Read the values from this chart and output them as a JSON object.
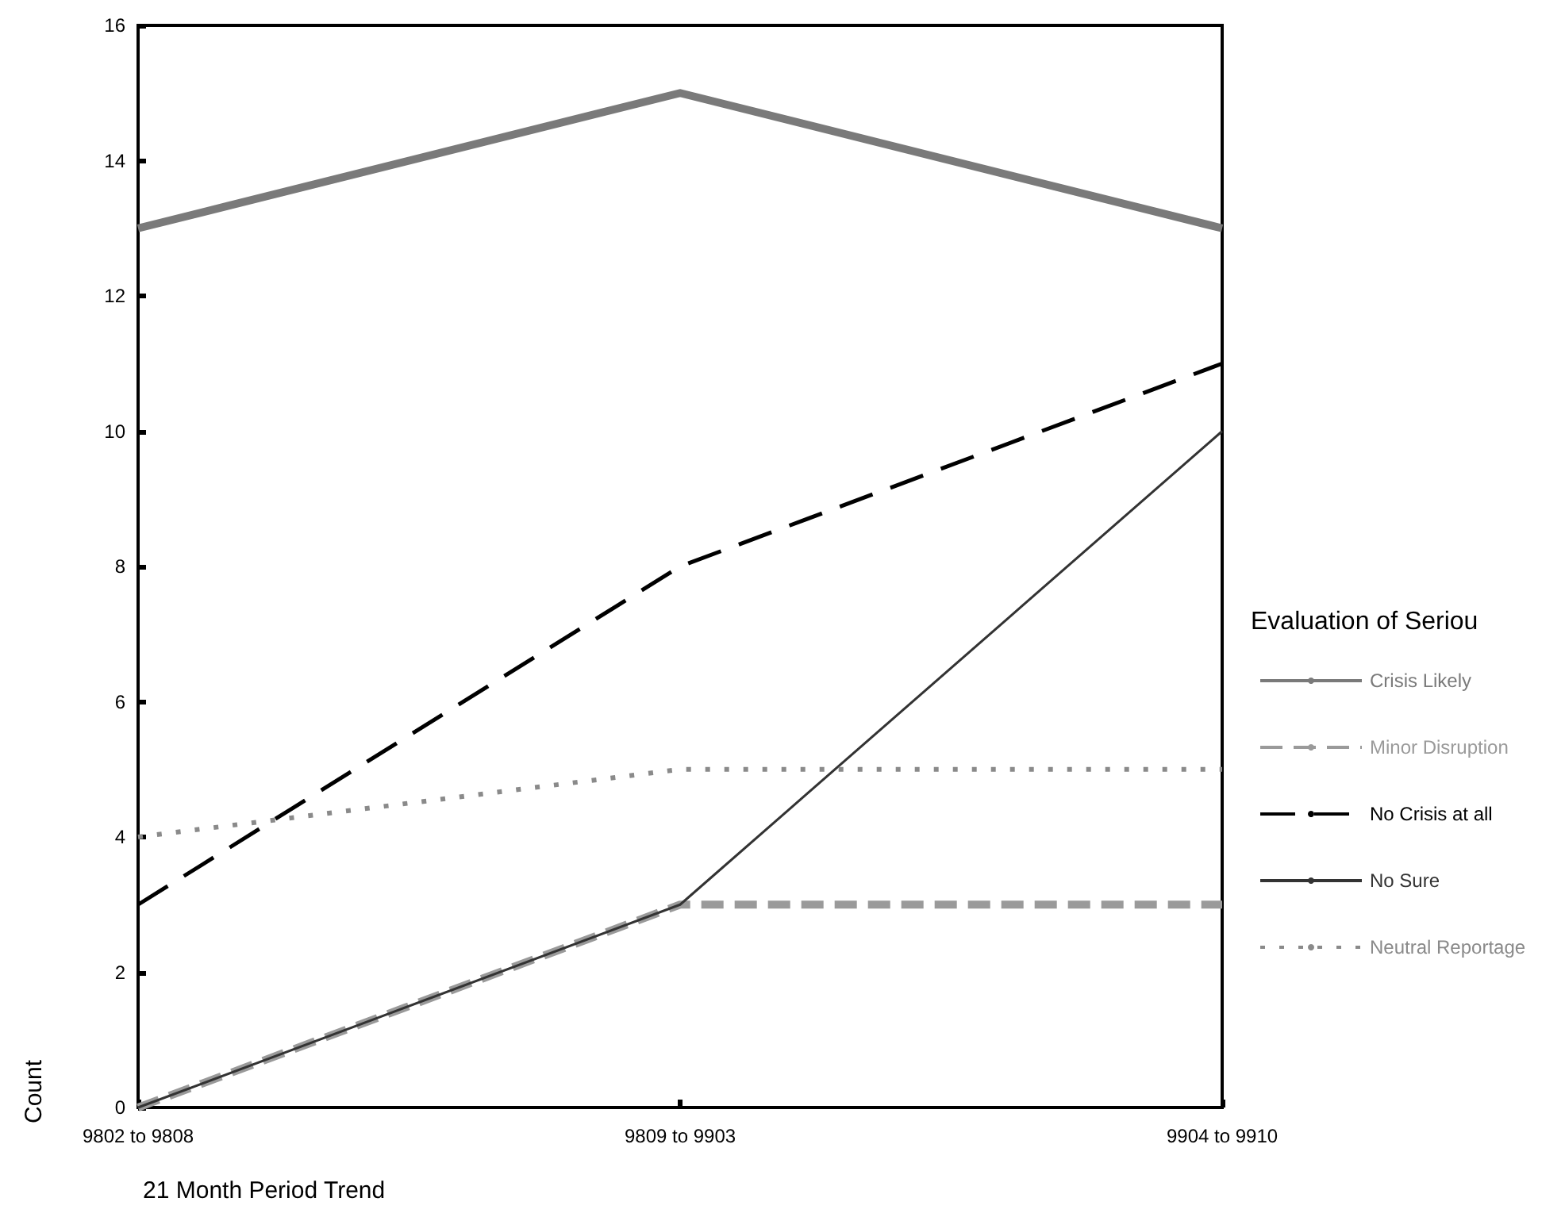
{
  "chart_data": {
    "type": "line",
    "xlabel": "21 Month Period Trend",
    "ylabel": "Count",
    "legend_title": "Evaluation of Seriou",
    "categories": [
      "9802 to 9808",
      "9809 to 9903",
      "9904 to 9910"
    ],
    "ylim": [
      0,
      16
    ],
    "yticks": [
      0,
      2,
      4,
      6,
      8,
      10,
      12,
      14,
      16
    ],
    "grid": false,
    "legend": "right",
    "marker": "none",
    "series": [
      {
        "name": "Crisis Likely",
        "color": "#7a7a7a",
        "line_style": "solid",
        "values": [
          13,
          15,
          13
        ]
      },
      {
        "name": "Minor Disruption",
        "color": "#9a9a9a",
        "line_style": "dashed",
        "values": [
          0,
          3,
          3
        ]
      },
      {
        "name": "No Crisis at all",
        "color": "#000000",
        "line_style": "dashed",
        "values": [
          3,
          8,
          11
        ]
      },
      {
        "name": "No Sure",
        "color": "#333333",
        "line_style": "solid",
        "values": [
          0,
          3,
          10
        ]
      },
      {
        "name": "Neutral Reportage",
        "color": "#8a8a8a",
        "line_style": "dotted",
        "values": [
          4,
          5,
          5
        ]
      }
    ]
  }
}
